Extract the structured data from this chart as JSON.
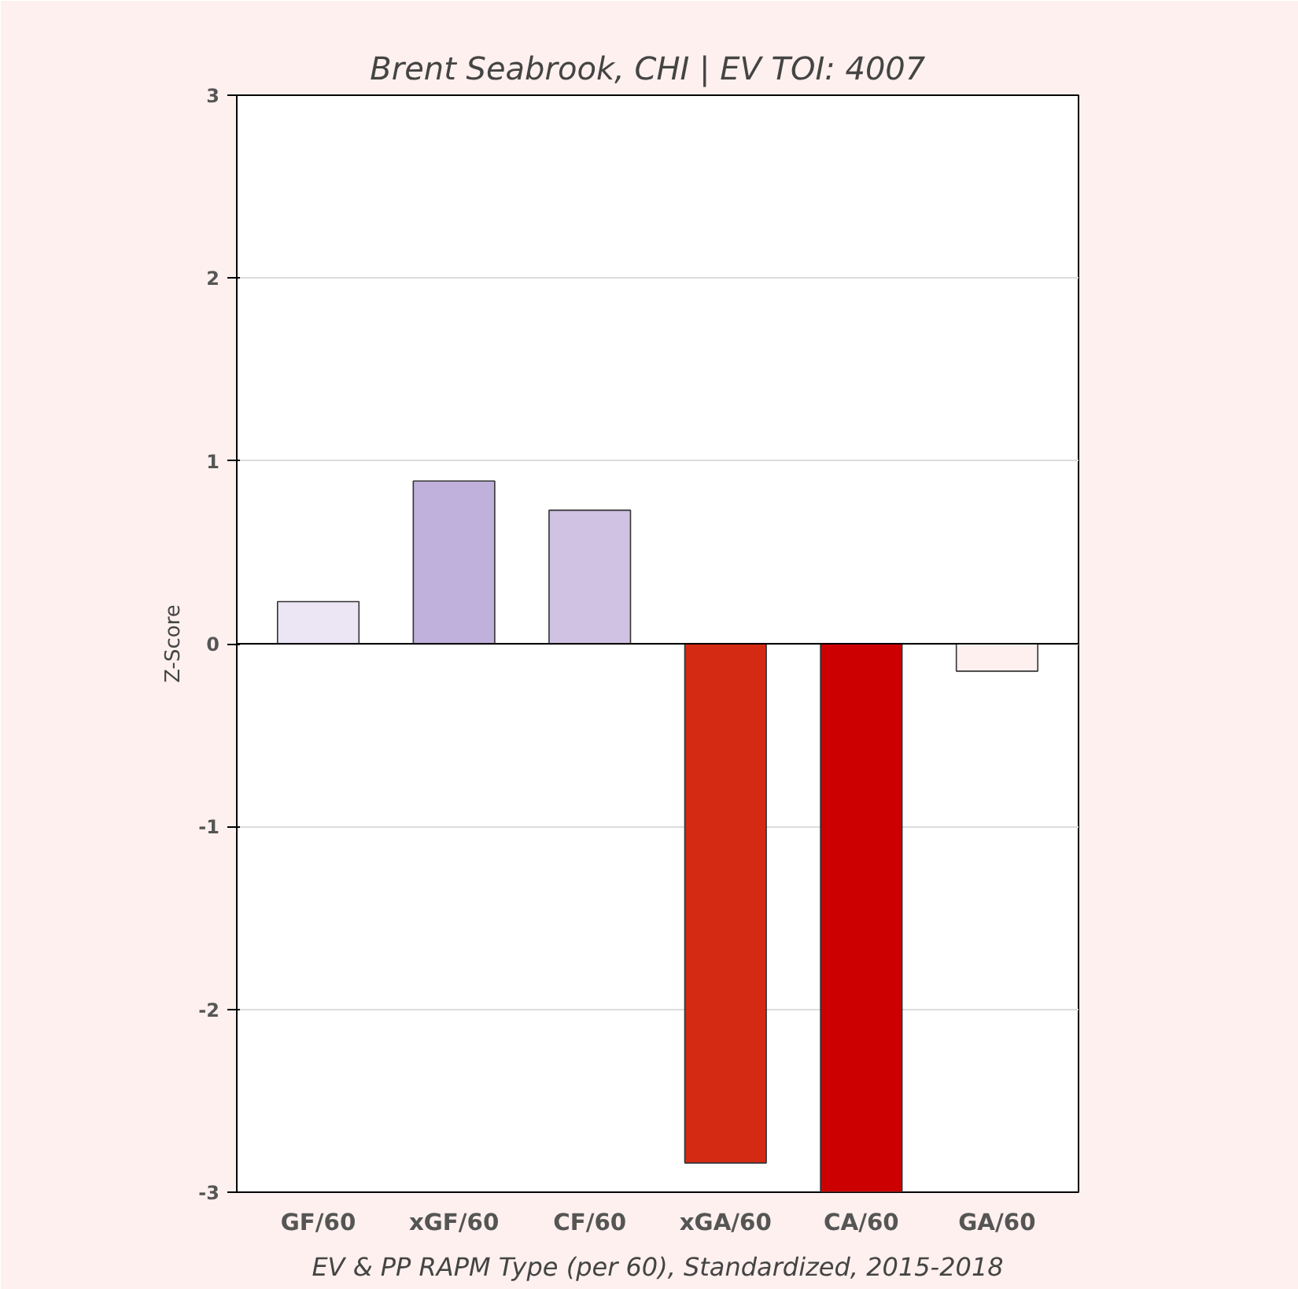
{
  "chart_data": {
    "type": "bar",
    "title": "Brent Seabrook, CHI  |  EV TOI: 4007",
    "ylabel": "Z-Score",
    "categories": [
      "GF/60",
      "xGF/60",
      "CF/60",
      "xGA/60",
      "CA/60",
      "GA/60"
    ],
    "values": [
      0.23,
      0.89,
      0.73,
      -2.84,
      -3.0,
      -0.15
    ],
    "colors": [
      "#ebe5f4",
      "#c0b0dc",
      "#cfc2e3",
      "#d42a14",
      "#cc0000",
      "#fdf0ef"
    ],
    "ylim": [
      -3,
      3
    ],
    "yticks": [
      -3,
      -2,
      -1,
      0,
      1,
      2,
      3
    ],
    "grid": "y",
    "ref_lines": [
      {
        "axis": "y",
        "value": 0,
        "color": "#000000"
      }
    ],
    "annotations": [
      "EV & PP RAPM Type (per 60), Standardized, 2015-2018"
    ]
  }
}
